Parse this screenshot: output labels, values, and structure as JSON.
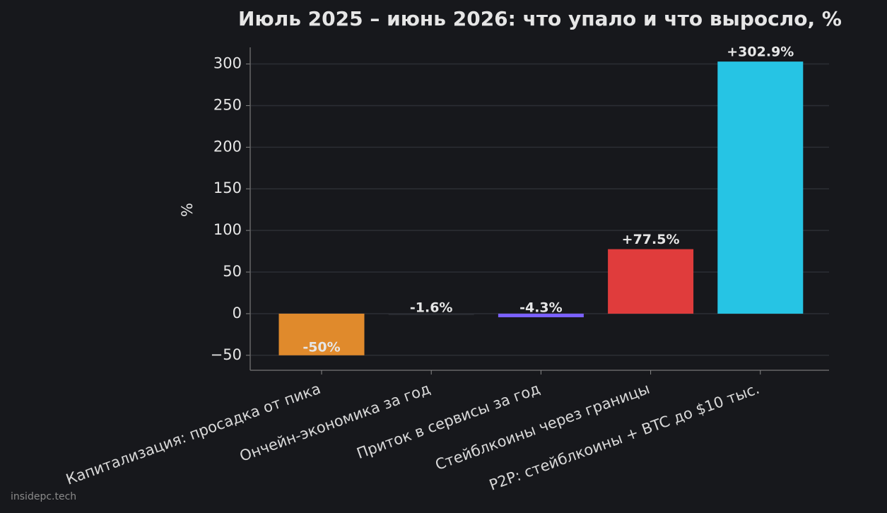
{
  "chart_data": {
    "type": "bar",
    "title": "Июль 2025 – июнь 2026: что упало и что выросло, %",
    "categories": [
      "Капитализация: просадка от пика",
      "Ончейн-экономика за год",
      "Приток в сервисы за год",
      "Стейблкоины через границы",
      "P2P: стейблкоины + BTC до $10 тыс."
    ],
    "values": [
      -50,
      -1.6,
      -4.3,
      77.5,
      302.9
    ],
    "value_labels": [
      "-50%",
      "-1.6%",
      "-4.3%",
      "+77.5%",
      "+302.9%"
    ],
    "colors": [
      "#e08a2c",
      "#2b2d33",
      "#7b61ff",
      "#e03c3c",
      "#26c4e4"
    ],
    "ylabel": "%",
    "ylim": [
      -68,
      320
    ],
    "yticks": [
      {
        "value": -50,
        "label": "−50"
      },
      0,
      50,
      100,
      150,
      200,
      250,
      300
    ],
    "grid": true,
    "watermark": "insidepc.tech"
  }
}
